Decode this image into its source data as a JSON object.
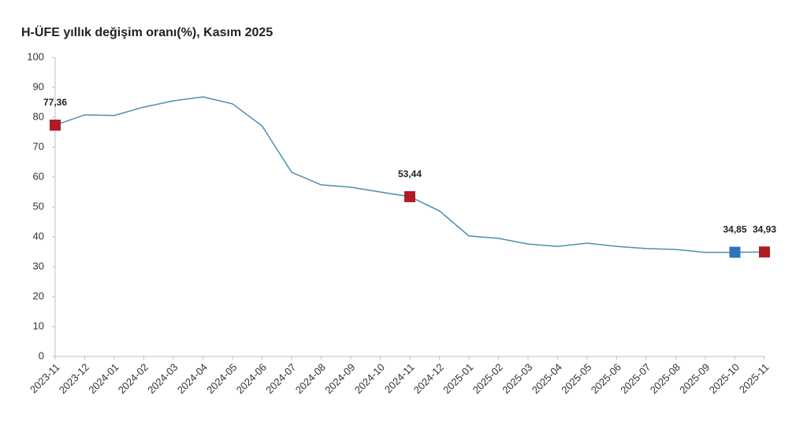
{
  "chart_data": {
    "type": "line",
    "title": "H-ÜFE yıllık değişim oranı(%), Kasım 2025",
    "categories": [
      "2023-11",
      "2023-12",
      "2024-01",
      "2024-02",
      "2024-03",
      "2024-04",
      "2024-05",
      "2024-06",
      "2024-07",
      "2024-08",
      "2024-09",
      "2024-10",
      "2024-11",
      "2024-12",
      "2025-01",
      "2025-02",
      "2025-03",
      "2025-04",
      "2025-05",
      "2025-06",
      "2025-07",
      "2025-08",
      "2025-09",
      "2025-10",
      "2025-11"
    ],
    "values": [
      77.36,
      80.8,
      80.6,
      83.4,
      85.5,
      86.8,
      84.5,
      77.1,
      61.6,
      57.4,
      56.6,
      55.0,
      53.44,
      48.7,
      40.3,
      39.5,
      37.6,
      36.8,
      37.9,
      36.8,
      36.1,
      35.8,
      34.8,
      34.85,
      34.93
    ],
    "value_labels": [
      "77,36",
      null,
      null,
      null,
      null,
      null,
      null,
      null,
      null,
      null,
      null,
      null,
      "53,44",
      null,
      null,
      null,
      null,
      null,
      null,
      null,
      null,
      null,
      null,
      "34,85",
      "34,93"
    ],
    "marker_colors": [
      "#b01c24",
      null,
      null,
      null,
      null,
      null,
      null,
      null,
      null,
      null,
      null,
      null,
      "#b01c24",
      null,
      null,
      null,
      null,
      null,
      null,
      null,
      null,
      null,
      null,
      "#2e75b6",
      "#b01c24"
    ],
    "color": "#4a8fb0",
    "ylim": [
      0,
      100
    ],
    "yticks": [
      0,
      10,
      20,
      30,
      40,
      50,
      60,
      70,
      80,
      90,
      100
    ],
    "grid": false
  }
}
